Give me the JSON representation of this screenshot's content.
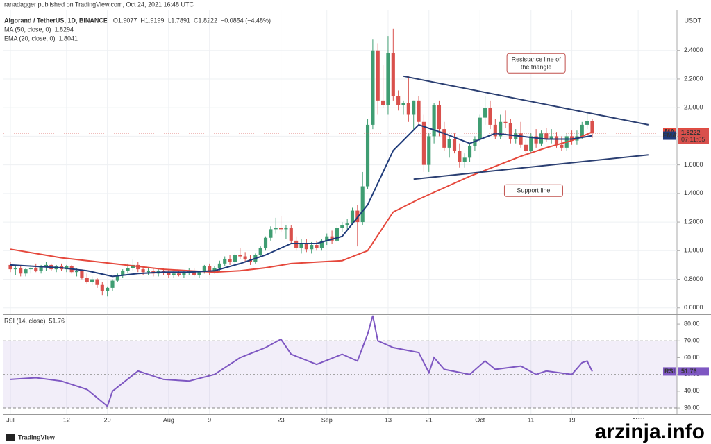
{
  "published": "ranadagger published on TradingView.com, Oct 24, 2021 16:48 UTC",
  "brand": "TradingView",
  "watermark": "arzinja.info",
  "chart_data": [
    {
      "type": "candlestick",
      "title": "Algorand / TetherUS, 1D, BINANCE",
      "ohlc_label": [
        "O1.9077",
        "H1.9199",
        "L1.7891",
        "C1.8222"
      ],
      "change_label": "−0.0854 (−4.48%)",
      "unit": "USDT",
      "countdown": "07:11:05",
      "up_color": "#3f9d72",
      "down_color": "#d9504c",
      "xlim": [
        -1.36,
        130.6
      ],
      "xticks": [
        {
          "value": 0,
          "label": "Jul"
        },
        {
          "value": 11,
          "label": "12"
        },
        {
          "value": 19,
          "label": "20"
        },
        {
          "value": 31,
          "label": "Aug"
        },
        {
          "value": 39,
          "label": "9"
        },
        {
          "value": 53,
          "label": "23"
        },
        {
          "value": 62,
          "label": "Sep"
        },
        {
          "value": 74,
          "label": "13"
        },
        {
          "value": 82,
          "label": "21"
        },
        {
          "value": 92,
          "label": "Oct"
        },
        {
          "value": 102,
          "label": "11"
        },
        {
          "value": 110,
          "label": "19"
        },
        {
          "value": 123,
          "label": "Nov"
        }
      ],
      "ylim": [
        0.56,
        2.68
      ],
      "yticks": [
        {
          "value": 0.6,
          "label": "0.6000"
        },
        {
          "value": 0.8,
          "label": "0.8000"
        },
        {
          "value": 1.0,
          "label": "1.0000"
        },
        {
          "value": 1.2,
          "label": "1.2000"
        },
        {
          "value": 1.4,
          "label": "1.4000"
        },
        {
          "value": 1.6,
          "label": "1.6000"
        },
        {
          "value": 1.8,
          "label": "1.8000"
        },
        {
          "value": 2.0,
          "label": "2.0000"
        },
        {
          "value": 2.2,
          "label": "2.2000"
        },
        {
          "value": 2.4,
          "label": "2.4000"
        }
      ],
      "grid": true,
      "ohlc": [
        [
          0.9,
          0.92,
          0.85,
          0.87
        ],
        [
          0.87,
          0.9,
          0.83,
          0.88
        ],
        [
          0.88,
          0.89,
          0.82,
          0.84
        ],
        [
          0.84,
          0.88,
          0.82,
          0.87
        ],
        [
          0.87,
          0.9,
          0.84,
          0.88
        ],
        [
          0.88,
          0.91,
          0.85,
          0.86
        ],
        [
          0.86,
          0.9,
          0.84,
          0.89
        ],
        [
          0.89,
          0.92,
          0.86,
          0.9
        ],
        [
          0.9,
          0.91,
          0.86,
          0.87
        ],
        [
          0.87,
          0.9,
          0.85,
          0.89
        ],
        [
          0.89,
          0.91,
          0.86,
          0.87
        ],
        [
          0.87,
          0.9,
          0.85,
          0.89
        ],
        [
          0.89,
          0.9,
          0.84,
          0.85
        ],
        [
          0.85,
          0.88,
          0.82,
          0.86
        ],
        [
          0.86,
          0.87,
          0.8,
          0.81
        ],
        [
          0.81,
          0.84,
          0.77,
          0.78
        ],
        [
          0.78,
          0.82,
          0.76,
          0.8
        ],
        [
          0.8,
          0.81,
          0.74,
          0.76
        ],
        [
          0.76,
          0.78,
          0.69,
          0.72
        ],
        [
          0.72,
          0.75,
          0.68,
          0.74
        ],
        [
          0.74,
          0.8,
          0.72,
          0.79
        ],
        [
          0.79,
          0.84,
          0.78,
          0.83
        ],
        [
          0.83,
          0.87,
          0.81,
          0.86
        ],
        [
          0.86,
          0.91,
          0.84,
          0.88
        ],
        [
          0.88,
          0.94,
          0.86,
          0.9
        ],
        [
          0.9,
          0.92,
          0.85,
          0.87
        ],
        [
          0.87,
          0.89,
          0.83,
          0.85
        ],
        [
          0.85,
          0.88,
          0.83,
          0.86
        ],
        [
          0.86,
          0.88,
          0.82,
          0.84
        ],
        [
          0.84,
          0.87,
          0.82,
          0.86
        ],
        [
          0.86,
          0.88,
          0.83,
          0.85
        ],
        [
          0.85,
          0.87,
          0.81,
          0.83
        ],
        [
          0.83,
          0.86,
          0.81,
          0.84
        ],
        [
          0.84,
          0.86,
          0.82,
          0.83
        ],
        [
          0.83,
          0.86,
          0.81,
          0.85
        ],
        [
          0.85,
          0.88,
          0.83,
          0.86
        ],
        [
          0.86,
          0.88,
          0.82,
          0.83
        ],
        [
          0.83,
          0.86,
          0.81,
          0.85
        ],
        [
          0.85,
          0.9,
          0.84,
          0.89
        ],
        [
          0.89,
          0.91,
          0.83,
          0.85
        ],
        [
          0.85,
          0.89,
          0.84,
          0.88
        ],
        [
          0.88,
          0.93,
          0.86,
          0.91
        ],
        [
          0.91,
          0.96,
          0.89,
          0.94
        ],
        [
          0.94,
          0.97,
          0.9,
          0.92
        ],
        [
          0.92,
          0.98,
          0.91,
          0.97
        ],
        [
          0.97,
          1.02,
          0.94,
          0.96
        ],
        [
          0.96,
          0.99,
          0.92,
          0.94
        ],
        [
          0.94,
          0.97,
          0.9,
          0.92
        ],
        [
          0.92,
          0.98,
          0.91,
          0.97
        ],
        [
          0.97,
          1.03,
          0.96,
          1.02
        ],
        [
          1.02,
          1.1,
          1.0,
          1.09
        ],
        [
          1.09,
          1.17,
          1.07,
          1.15
        ],
        [
          1.15,
          1.23,
          1.12,
          1.16
        ],
        [
          1.16,
          1.24,
          1.13,
          1.15
        ],
        [
          1.15,
          1.18,
          1.08,
          1.16
        ],
        [
          1.16,
          1.18,
          1.05,
          1.07
        ],
        [
          1.07,
          1.1,
          1.0,
          1.02
        ],
        [
          1.02,
          1.08,
          0.98,
          1.05
        ],
        [
          1.05,
          1.08,
          0.99,
          1.01
        ],
        [
          1.01,
          1.06,
          0.98,
          1.04
        ],
        [
          1.04,
          1.07,
          1.0,
          1.02
        ],
        [
          1.02,
          1.08,
          1.0,
          1.07
        ],
        [
          1.07,
          1.12,
          1.04,
          1.1
        ],
        [
          1.1,
          1.14,
          1.05,
          1.07
        ],
        [
          1.07,
          1.18,
          1.06,
          1.16
        ],
        [
          1.16,
          1.2,
          1.13,
          1.18
        ],
        [
          1.18,
          1.22,
          1.15,
          1.19
        ],
        [
          1.19,
          1.3,
          1.18,
          1.28
        ],
        [
          1.28,
          1.32,
          1.03,
          1.2
        ],
        [
          1.2,
          1.55,
          1.18,
          1.45
        ],
        [
          1.45,
          1.92,
          1.43,
          1.88
        ],
        [
          1.88,
          2.48,
          1.85,
          2.4
        ],
        [
          2.4,
          2.45,
          1.95,
          2.05
        ],
        [
          2.05,
          2.3,
          2.0,
          2.02
        ],
        [
          2.02,
          2.5,
          1.95,
          2.38
        ],
        [
          2.38,
          2.55,
          2.05,
          2.08
        ],
        [
          2.08,
          2.12,
          1.98,
          2.02
        ],
        [
          2.02,
          2.05,
          1.95,
          2.03
        ],
        [
          2.03,
          2.22,
          1.9,
          1.95
        ],
        [
          1.95,
          2.05,
          1.85,
          2.05
        ],
        [
          2.05,
          2.08,
          1.88,
          1.9
        ],
        [
          1.9,
          1.95,
          1.55,
          1.6
        ],
        [
          1.6,
          1.82,
          1.55,
          1.8
        ],
        [
          1.8,
          2.03,
          1.75,
          2.02
        ],
        [
          2.02,
          2.05,
          1.8,
          1.85
        ],
        [
          1.85,
          1.9,
          1.7,
          1.72
        ],
        [
          1.72,
          1.8,
          1.65,
          1.78
        ],
        [
          1.78,
          1.82,
          1.68,
          1.7
        ],
        [
          1.7,
          1.75,
          1.58,
          1.62
        ],
        [
          1.62,
          1.68,
          1.58,
          1.65
        ],
        [
          1.65,
          1.75,
          1.62,
          1.73
        ],
        [
          1.73,
          1.8,
          1.7,
          1.78
        ],
        [
          1.78,
          1.95,
          1.76,
          1.93
        ],
        [
          1.93,
          2.08,
          1.88,
          2.0
        ],
        [
          2.0,
          2.05,
          1.85,
          1.88
        ],
        [
          1.88,
          1.92,
          1.78,
          1.8
        ],
        [
          1.8,
          1.95,
          1.78,
          1.9
        ],
        [
          1.9,
          1.98,
          1.86,
          1.89
        ],
        [
          1.89,
          1.92,
          1.75,
          1.78
        ],
        [
          1.78,
          1.85,
          1.75,
          1.82
        ],
        [
          1.82,
          1.9,
          1.72,
          1.74
        ],
        [
          1.74,
          1.78,
          1.65,
          1.7
        ],
        [
          1.7,
          1.82,
          1.68,
          1.8
        ],
        [
          1.8,
          1.85,
          1.72,
          1.75
        ],
        [
          1.75,
          1.84,
          1.73,
          1.82
        ],
        [
          1.82,
          1.86,
          1.76,
          1.78
        ],
        [
          1.78,
          1.85,
          1.75,
          1.8
        ],
        [
          1.8,
          1.83,
          1.72,
          1.74
        ],
        [
          1.74,
          1.8,
          1.7,
          1.72
        ],
        [
          1.72,
          1.82,
          1.7,
          1.8
        ],
        [
          1.8,
          1.84,
          1.74,
          1.77
        ],
        [
          1.77,
          1.84,
          1.74,
          1.8
        ],
        [
          1.8,
          1.9,
          1.78,
          1.88
        ],
        [
          1.88,
          1.96,
          1.85,
          1.9077
        ],
        [
          1.9077,
          1.9199,
          1.7891,
          1.8222
        ]
      ],
      "series": [
        {
          "name": "MA (50, close, 0)",
          "tag": "MA",
          "color": "#e5483c",
          "x": [
            0,
            5,
            10,
            15,
            20,
            25,
            30,
            35,
            40,
            45,
            50,
            55,
            60,
            65,
            70,
            75,
            80,
            85,
            90,
            95,
            100,
            105,
            110,
            114
          ],
          "values": [
            1.01,
            0.98,
            0.95,
            0.93,
            0.91,
            0.89,
            0.87,
            0.86,
            0.85,
            0.86,
            0.88,
            0.91,
            0.92,
            0.93,
            1.0,
            1.27,
            1.36,
            1.44,
            1.52,
            1.59,
            1.66,
            1.72,
            1.77,
            1.8294
          ]
        },
        {
          "name": "EMA (20, close, 0)",
          "tag": "EMA",
          "color": "#1f3b7a",
          "x": [
            0,
            5,
            10,
            15,
            20,
            25,
            30,
            35,
            40,
            45,
            50,
            55,
            60,
            65,
            70,
            75,
            80,
            85,
            90,
            95,
            100,
            105,
            110,
            114
          ],
          "values": [
            0.9,
            0.89,
            0.88,
            0.86,
            0.82,
            0.84,
            0.85,
            0.85,
            0.86,
            0.91,
            0.97,
            1.05,
            1.05,
            1.1,
            1.32,
            1.7,
            1.88,
            1.82,
            1.75,
            1.82,
            1.8,
            1.78,
            1.78,
            1.8041
          ]
        }
      ],
      "trendlines": [
        {
          "x": [
            77,
            125
          ],
          "values": [
            2.22,
            1.88
          ]
        },
        {
          "x": [
            79,
            125
          ],
          "values": [
            1.5,
            1.67
          ]
        }
      ],
      "annotations": [
        {
          "lines": [
            "Resistance line of",
            "the triangle"
          ],
          "x": 103,
          "value": 2.31
        },
        {
          "lines": [
            "Support line"
          ],
          "x": 102.5,
          "value": 1.42
        }
      ]
    },
    {
      "type": "line",
      "title": "RSI (14, close)",
      "xlim": [
        -1.36,
        130.6
      ],
      "ylim": [
        26.3,
        85
      ],
      "yticks": [
        {
          "value": 30,
          "label": "30.00"
        },
        {
          "value": 40,
          "label": "40.00"
        },
        {
          "value": 50,
          "label": "50.00"
        },
        {
          "value": 60,
          "label": "60.00"
        },
        {
          "value": 70,
          "label": "70.00"
        },
        {
          "value": 80,
          "label": "80.00"
        }
      ],
      "band": [
        30,
        70
      ],
      "midline": 50,
      "series": [
        {
          "name": "RSI",
          "tag": "RSI",
          "color": "#7e57c2",
          "x": [
            0,
            5,
            10,
            15,
            19,
            20,
            25,
            30,
            35,
            40,
            45,
            50,
            53,
            55,
            60,
            65,
            68,
            70,
            71,
            72,
            75,
            80,
            82,
            83,
            85,
            90,
            93,
            95,
            100,
            103,
            105,
            110,
            112,
            113,
            114
          ],
          "values": [
            47,
            48,
            46,
            41,
            31,
            40,
            52,
            47,
            46,
            50,
            60,
            66,
            71,
            62,
            56,
            62,
            58,
            74,
            85,
            70,
            66,
            63,
            51,
            60,
            53,
            50,
            58,
            53,
            55,
            50,
            52,
            50,
            57,
            58,
            51.76
          ]
        }
      ]
    }
  ]
}
